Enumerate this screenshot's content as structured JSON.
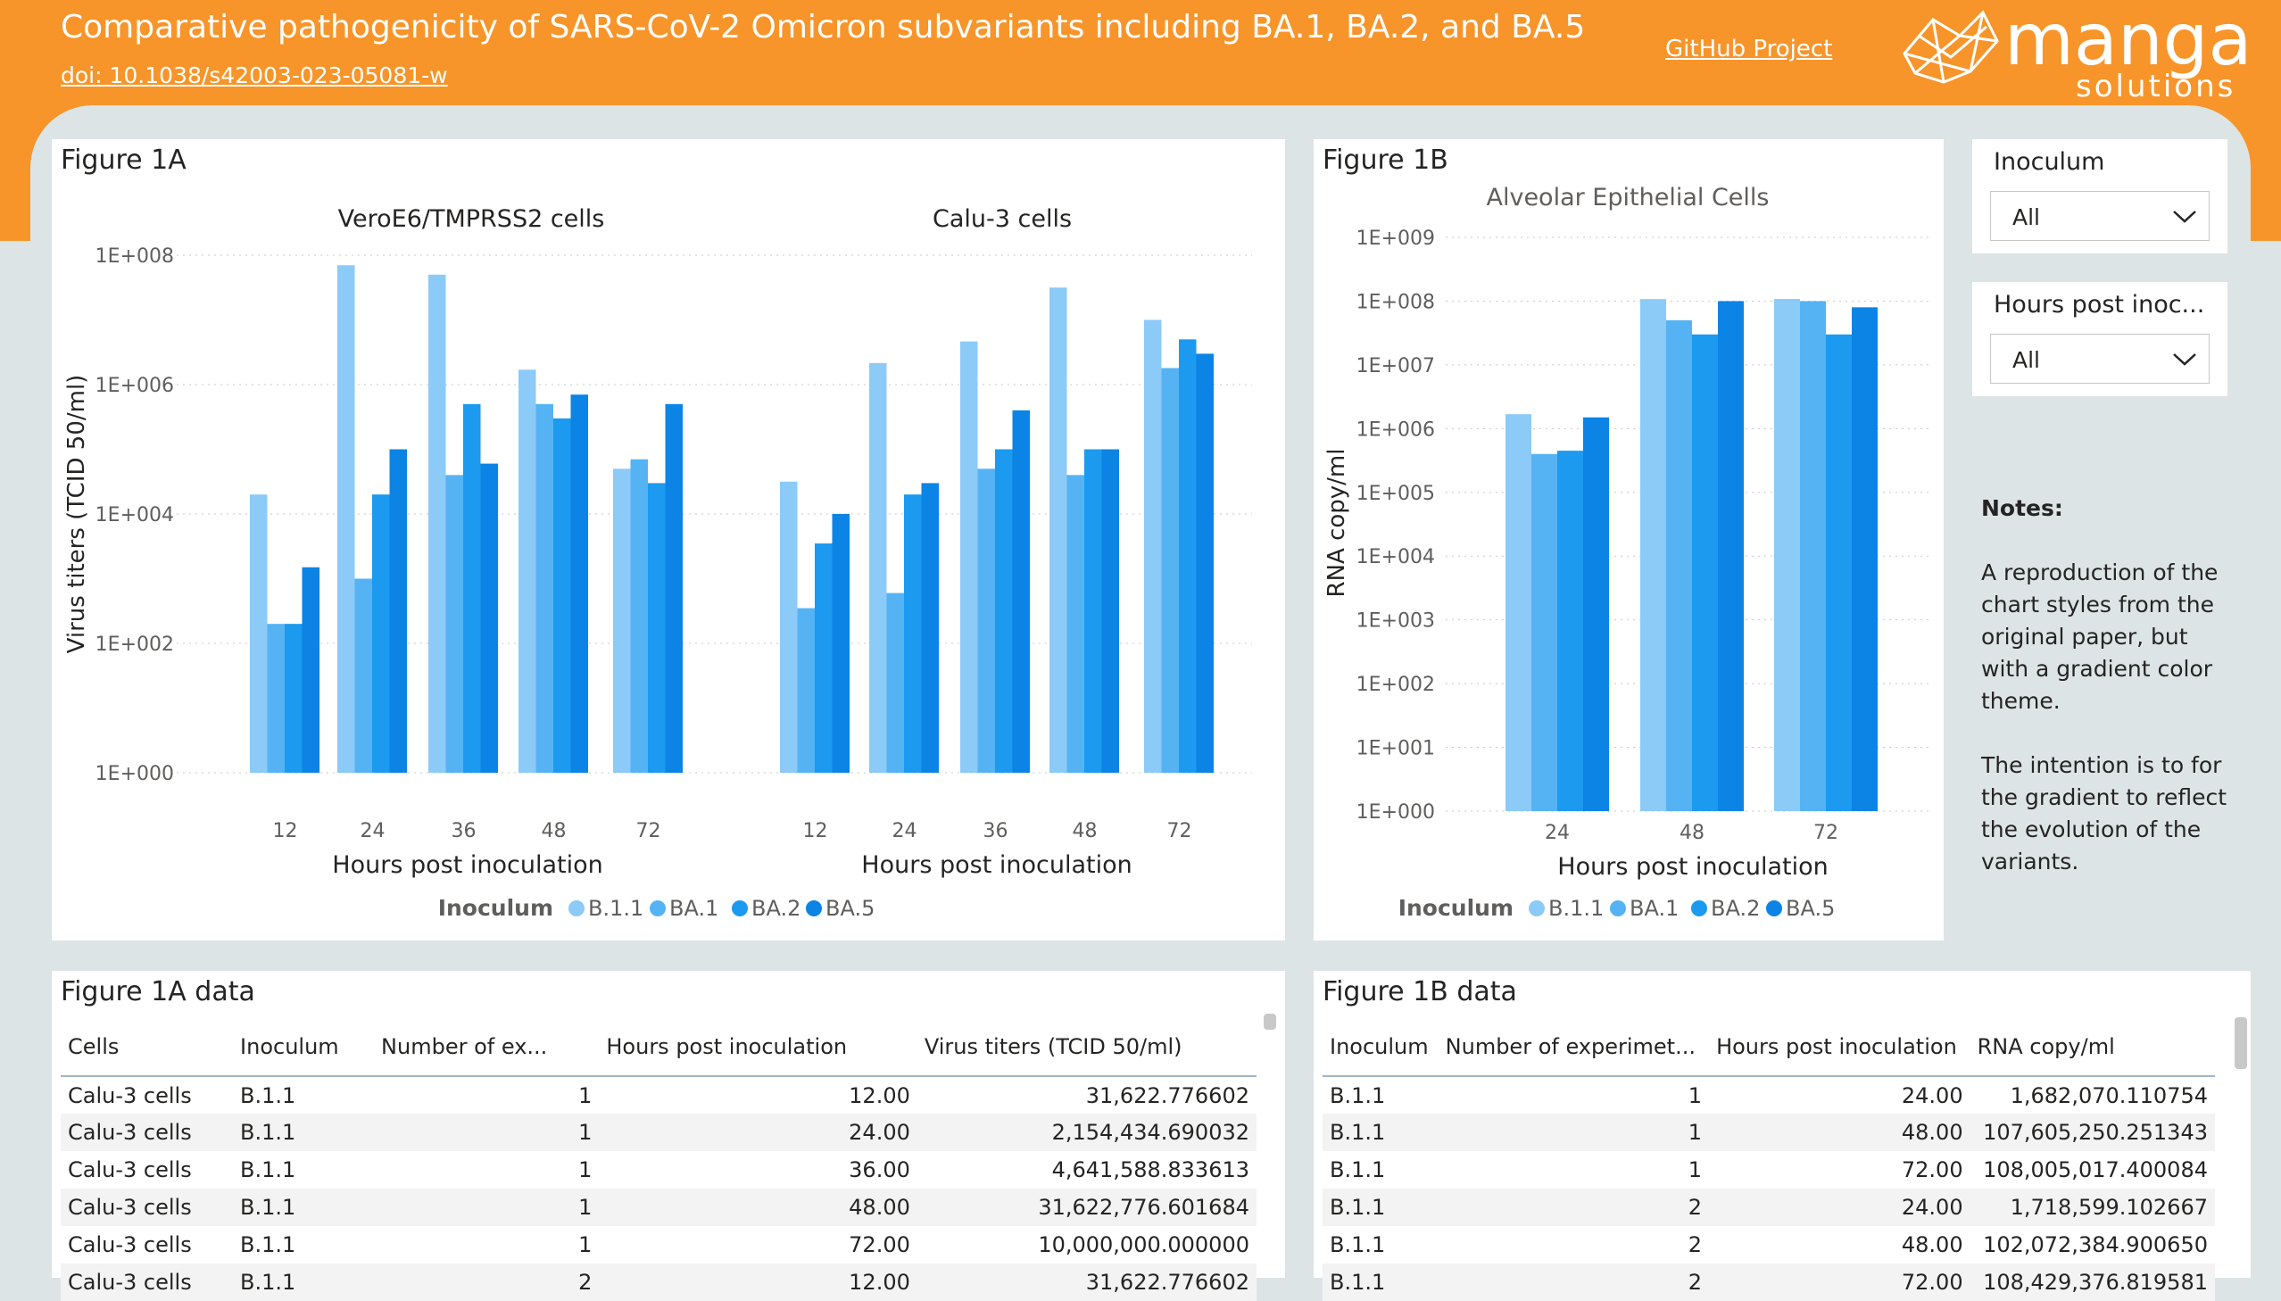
{
  "header": {
    "title": "Comparative pathogenicity of SARS-CoV-2 Omicron subvariants including BA.1, BA.2, and BA.5",
    "doi": "doi: 10.1038/s42003-023-05081-w",
    "github_link": "GitHub Project",
    "logo_text_main": "manga",
    "logo_text_sub": "solutions",
    "colors": {
      "orange": "#f7952b",
      "canvas": "#dde4e6"
    }
  },
  "series_colors": {
    "B.1.1": "#8ccaf8",
    "BA.1": "#55b3f4",
    "BA.2": "#1b9af0",
    "BA.5": "#0b84e5"
  },
  "fig1a": {
    "panel_title": "Figure 1A",
    "left_title": "VeroE6/TMPRSS2 cells",
    "right_title": "Calu-3 cells",
    "ylabel": "Virus titers (TCID 50/ml)",
    "xlabel": "Hours post inoculation",
    "yticks": [
      "1E+008",
      "1E+006",
      "1E+004",
      "1E+002",
      "1E+000"
    ],
    "legend_title": "Inoculum"
  },
  "fig1b": {
    "panel_title": "Figure 1B",
    "chart_title": "Alveolar Epithelial Cells",
    "ylabel": "RNA copy/ml",
    "xlabel": "Hours post inoculation",
    "yticks": [
      "1E+009",
      "1E+008",
      "1E+007",
      "1E+006",
      "1E+005",
      "1E+004",
      "1E+003",
      "1E+002",
      "1E+001",
      "1E+000"
    ],
    "legend_title": "Inoculum"
  },
  "chart_data": [
    {
      "type": "bar",
      "title": "VeroE6/TMPRSS2 cells",
      "xlabel": "Hours post inoculation",
      "ylabel": "Virus titers (TCID 50/ml)",
      "yscale": "log",
      "ylim": [
        1,
        100000000
      ],
      "categories": [
        "12",
        "24",
        "36",
        "48",
        "72"
      ],
      "series": [
        {
          "name": "B.1.1",
          "values": [
            20000,
            70000000,
            50000000,
            1700000,
            50000
          ]
        },
        {
          "name": "BA.1",
          "values": [
            200,
            1000,
            40000,
            500000,
            70000
          ]
        },
        {
          "name": "BA.2",
          "values": [
            200,
            20000,
            500000,
            300000,
            30000
          ]
        },
        {
          "name": "BA.5",
          "values": [
            1500,
            100000,
            60000,
            700000,
            500000
          ]
        }
      ]
    },
    {
      "type": "bar",
      "title": "Calu-3 cells",
      "xlabel": "Hours post inoculation",
      "ylabel": "Virus titers (TCID 50/ml)",
      "yscale": "log",
      "ylim": [
        1,
        100000000
      ],
      "categories": [
        "12",
        "24",
        "36",
        "48",
        "72"
      ],
      "series": [
        {
          "name": "B.1.1",
          "values": [
            31622.776602,
            2154434.690032,
            4641588.833613,
            31622776.601684,
            10000000
          ]
        },
        {
          "name": "BA.1",
          "values": [
            350,
            600,
            50000,
            40000,
            1800000
          ]
        },
        {
          "name": "BA.2",
          "values": [
            3500,
            20000,
            100000,
            100000,
            5000000
          ]
        },
        {
          "name": "BA.5",
          "values": [
            10000,
            30000,
            400000,
            100000,
            3000000
          ]
        }
      ]
    },
    {
      "type": "bar",
      "title": "Alveolar Epithelial Cells",
      "xlabel": "Hours post inoculation",
      "ylabel": "RNA copy/ml",
      "yscale": "log",
      "ylim": [
        1,
        1000000000
      ],
      "categories": [
        "24",
        "48",
        "72"
      ],
      "series": [
        {
          "name": "B.1.1",
          "values": [
            1682070.110754,
            107605250.251343,
            108005017.400084
          ]
        },
        {
          "name": "BA.1",
          "values": [
            400000,
            50000000,
            100000000
          ]
        },
        {
          "name": "BA.2",
          "values": [
            450000,
            30000000,
            30000000
          ]
        },
        {
          "name": "BA.5",
          "values": [
            1500000,
            100000000,
            80000000
          ]
        }
      ]
    }
  ],
  "slicers": {
    "inoculum_title": "Inoculum",
    "inoculum_value": "All",
    "hours_title": "Hours post inoc...",
    "hours_value": "All"
  },
  "notes": {
    "heading": "Notes:",
    "p1": "A reproduction of the chart styles from the original paper, but with a gradient color theme.",
    "p2": "The intention is to for the gradient to reflect the evolution of the variants."
  },
  "table1a": {
    "title": "Figure 1A data",
    "headers": [
      "Cells",
      "Inoculum",
      "Number of ex...",
      "Hours post inoculation",
      "Virus titers (TCID 50/ml)"
    ],
    "rows": [
      [
        "Calu-3 cells",
        "B.1.1",
        "1",
        "12.00",
        "31,622.776602"
      ],
      [
        "Calu-3 cells",
        "B.1.1",
        "1",
        "24.00",
        "2,154,434.690032"
      ],
      [
        "Calu-3 cells",
        "B.1.1",
        "1",
        "36.00",
        "4,641,588.833613"
      ],
      [
        "Calu-3 cells",
        "B.1.1",
        "1",
        "48.00",
        "31,622,776.601684"
      ],
      [
        "Calu-3 cells",
        "B.1.1",
        "1",
        "72.00",
        "10,000,000.000000"
      ],
      [
        "Calu-3 cells",
        "B.1.1",
        "2",
        "12.00",
        "31,622.776602"
      ]
    ]
  },
  "table1b": {
    "title": "Figure 1B data",
    "headers": [
      "Inoculum",
      "Number of experimet...",
      "Hours post inoculation",
      "RNA copy/ml"
    ],
    "rows": [
      [
        "B.1.1",
        "1",
        "24.00",
        "1,682,070.110754"
      ],
      [
        "B.1.1",
        "1",
        "48.00",
        "107,605,250.251343"
      ],
      [
        "B.1.1",
        "1",
        "72.00",
        "108,005,017.400084"
      ],
      [
        "B.1.1",
        "2",
        "24.00",
        "1,718,599.102667"
      ],
      [
        "B.1.1",
        "2",
        "48.00",
        "102,072,384.900650"
      ],
      [
        "B.1.1",
        "2",
        "72.00",
        "108,429,376.819581"
      ]
    ]
  }
}
